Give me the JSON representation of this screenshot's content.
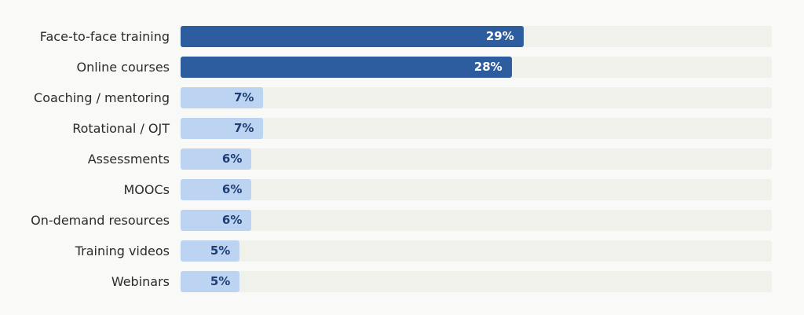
{
  "chart_data": {
    "type": "bar",
    "orientation": "horizontal",
    "title": "",
    "xlabel": "",
    "ylabel": "",
    "xlim": [
      0,
      50
    ],
    "grid": false,
    "categories": [
      "Face-to-face training",
      "Online courses",
      "Coaching / mentoring",
      "Rotational / OJT",
      "Assessments",
      "MOOCs",
      "On-demand resources",
      "Training videos",
      "Webinars"
    ],
    "values": [
      29,
      28,
      7,
      7,
      6,
      6,
      6,
      5,
      5
    ],
    "value_labels": [
      "29%",
      "28%",
      "7%",
      "7%",
      "6%",
      "6%",
      "6%",
      "5%",
      "5%"
    ],
    "highlighted": [
      true,
      true,
      false,
      false,
      false,
      false,
      false,
      false,
      false
    ]
  },
  "colors": {
    "highlight_bar": "#2d5c9f",
    "highlight_text": "#ffffff",
    "normal_bar": "#bcd4f2",
    "normal_text": "#1f3f74",
    "track": "#f1f1ec"
  }
}
